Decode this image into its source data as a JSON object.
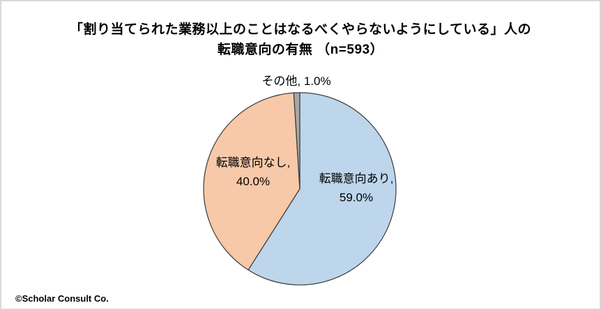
{
  "title": {
    "line1": "「割り当てられた業務以上のことはなるべくやらないようにしている」人の",
    "line2": "転職意向の有無 （n=593）"
  },
  "footer": {
    "copyright": "©Scholar Consult Co."
  },
  "colors": {
    "frame_border": "#D9D9D9",
    "slice_outline": "#3A3A3A",
    "background": "#FFFFFF",
    "text": "#000000"
  },
  "chart_data": {
    "type": "pie",
    "title": "「割り当てられた業務以上のことはなるべくやらないようにしている」人の転職意向の有無（n=593）",
    "sample_size_label": "n=593",
    "start_angle_deg": 0,
    "direction": "clockwise",
    "legend_position": "none",
    "grid": false,
    "slices": [
      {
        "label": "転職意向あり",
        "value": 59.0,
        "color": "#BDD6EC",
        "label_line1": "転職意向あり,",
        "label_line2": "59.0%"
      },
      {
        "label": "転職意向なし",
        "value": 40.0,
        "color": "#F7C9A9",
        "label_line1": "転職意向なし,",
        "label_line2": "40.0%"
      },
      {
        "label": "その他",
        "value": 1.0,
        "color": "#A6A6A6",
        "label_line1": "その他, 1.0%",
        "label_line2": ""
      }
    ]
  }
}
